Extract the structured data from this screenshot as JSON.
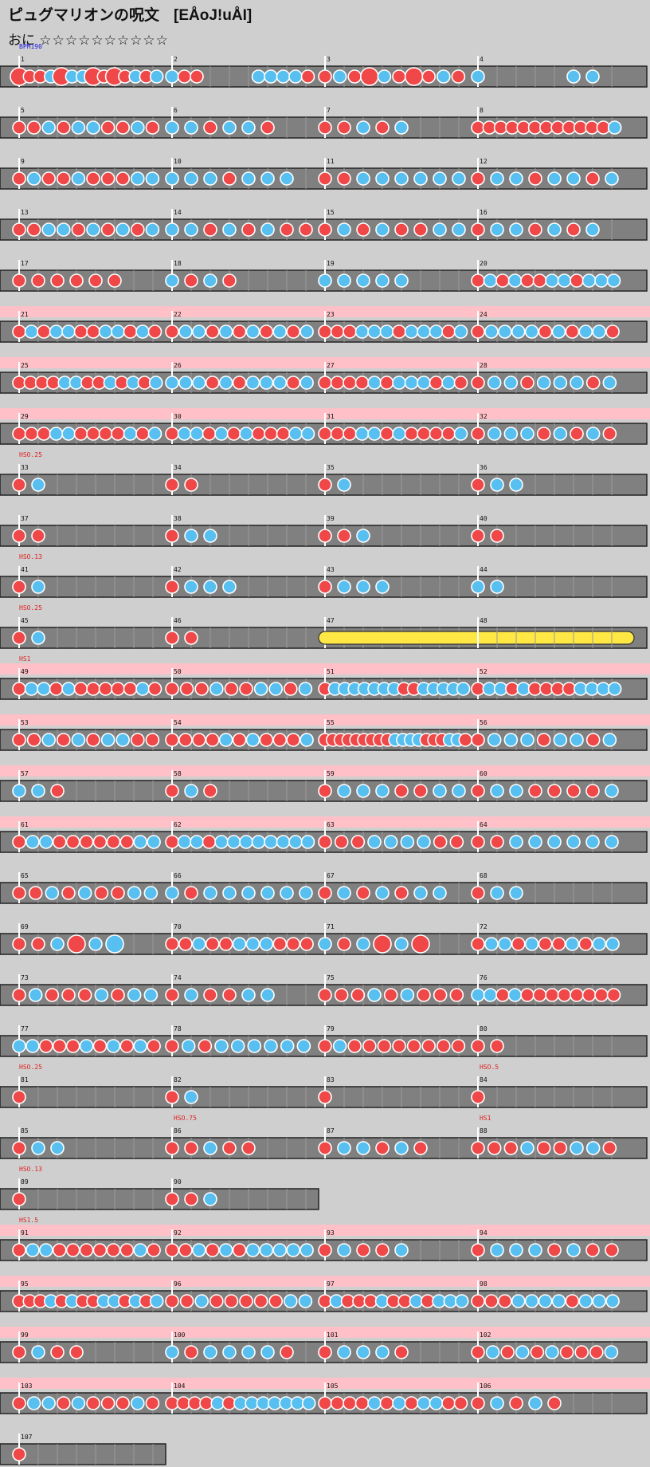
{
  "header": {
    "title": "ピュグマリオンの呪文",
    "subtitle": "[EÅoJ!uÅI]",
    "course": "おに",
    "stars": "☆☆☆☆☆☆☆☆☆☆"
  },
  "colors": {
    "background": "#cfcfcf",
    "lane": "#808080",
    "lane_border": "#222222",
    "gogo": "#ffc0c8",
    "don": "#f04848",
    "ka": "#58c0f0",
    "roll": "#ffe844",
    "event_text": "#e02020",
    "bpm_text": "#2020e0"
  },
  "score": {
    "bpm_label": "BPM190",
    "rows": [
      {
        "gogo": false,
        "hs": "",
        "bars": [
          {
            "n": 1,
            "notes": "DddkDkkDdDdkdk"
          },
          {
            "n": 2,
            "notes": "kdd____kkkkd"
          },
          {
            "n": 3,
            "notes": "dkdDkdDdkd"
          },
          {
            "n": 4,
            "notes": "k____kk"
          }
        ]
      },
      {
        "gogo": false,
        "hs": "",
        "bars": [
          {
            "n": 5,
            "notes": "ddkdkkddkd"
          },
          {
            "n": 6,
            "notes": "kkdkkd"
          },
          {
            "n": 7,
            "notes": "ddkdk"
          },
          {
            "n": 8,
            "notes": "ddddddddddddk"
          }
        ]
      },
      {
        "gogo": false,
        "hs": "",
        "bars": [
          {
            "n": 9,
            "notes": "dkddkdddkk"
          },
          {
            "n": 10,
            "notes": "kkkdkkk"
          },
          {
            "n": 11,
            "notes": "ddkkkkkk"
          },
          {
            "n": 12,
            "notes": "dkkdkkdk"
          }
        ]
      },
      {
        "gogo": false,
        "hs": "",
        "bars": [
          {
            "n": 13,
            "notes": "ddkkdkdkdk"
          },
          {
            "n": 14,
            "notes": "kkdkdkdd"
          },
          {
            "n": 15,
            "notes": "dkdkddkk"
          },
          {
            "n": 16,
            "notes": "dkkdkdk"
          }
        ]
      },
      {
        "gogo": false,
        "hs": "",
        "bars": [
          {
            "n": 17,
            "notes": "dddddd"
          },
          {
            "n": 18,
            "notes": "kdkd"
          },
          {
            "n": 19,
            "notes": "kkkkk"
          },
          {
            "n": 20,
            "notes": "dkdkddkkdkkk"
          }
        ]
      },
      {
        "gogo": true,
        "hs": "",
        "bars": [
          {
            "n": 21,
            "notes": "dkdkkddkkdkd"
          },
          {
            "n": 22,
            "notes": "dkkdkdkdkdk"
          },
          {
            "n": 23,
            "notes": "dddkkkdkkkdk"
          },
          {
            "n": 24,
            "notes": "dkkkkdkdkkd"
          }
        ]
      },
      {
        "gogo": true,
        "hs": "",
        "bars": [
          {
            "n": 25,
            "notes": "ddddkkddkdkdk"
          },
          {
            "n": 26,
            "notes": "kkkdkdkkkdk"
          },
          {
            "n": 27,
            "notes": "ddddkdkkkdkd"
          },
          {
            "n": 28,
            "notes": "dkkdkkkdk"
          }
        ]
      },
      {
        "gogo": true,
        "hs": "",
        "bars": [
          {
            "n": 29,
            "notes": "dddkkddddkdk"
          },
          {
            "n": 30,
            "notes": "dkkdkdkdddkk"
          },
          {
            "n": 31,
            "notes": "dddkkdkddddk"
          },
          {
            "n": 32,
            "notes": "dkkkdkdkd"
          }
        ]
      },
      {
        "gogo": false,
        "hs": "HSO.25",
        "bars": [
          {
            "n": 33,
            "notes": "dk"
          },
          {
            "n": 34,
            "notes": "dd"
          },
          {
            "n": 35,
            "notes": "dk"
          },
          {
            "n": 36,
            "notes": "dkk"
          }
        ]
      },
      {
        "gogo": false,
        "hs": "",
        "bars": [
          {
            "n": 37,
            "notes": "dd"
          },
          {
            "n": 38,
            "notes": "dkk"
          },
          {
            "n": 39,
            "notes": "ddk"
          },
          {
            "n": 40,
            "notes": "dd"
          }
        ]
      },
      {
        "gogo": false,
        "hs": "HSO.13",
        "bars": [
          {
            "n": 41,
            "notes": "dk"
          },
          {
            "n": 42,
            "notes": "dkkk"
          },
          {
            "n": 43,
            "notes": "dkkk"
          },
          {
            "n": 44,
            "notes": "kk"
          }
        ]
      },
      {
        "gogo": false,
        "hs": "HSO.25",
        "bars": [
          {
            "n": 45,
            "notes": "dk"
          },
          {
            "n": 46,
            "notes": "dd"
          },
          {
            "n": 47,
            "notes": "R"
          },
          {
            "n": 48,
            "notes": ""
          }
        ]
      },
      {
        "gogo": true,
        "hs": "HS1",
        "bars": [
          {
            "n": 49,
            "notes": "dkkdkdddddkd"
          },
          {
            "n": 50,
            "notes": "dddkddkkdk"
          },
          {
            "n": 51,
            "notes": "dkkkkkkkddkkkkk"
          },
          {
            "n": 52,
            "notes": "dkkdkddddkkkk"
          }
        ]
      },
      {
        "gogo": true,
        "hs": "",
        "bars": [
          {
            "n": 53,
            "notes": "ddkdkdkkdd"
          },
          {
            "n": 54,
            "notes": "ddddkdkdddk"
          },
          {
            "n": 55,
            "notes": "dddddddddkkkkdddkkd"
          },
          {
            "n": 56,
            "notes": "dkkkdkkdk"
          }
        ]
      },
      {
        "gogo": true,
        "hs": "",
        "bars": [
          {
            "n": 57,
            "notes": "kkd"
          },
          {
            "n": 58,
            "notes": "dkd"
          },
          {
            "n": 59,
            "notes": "dkkkddkk"
          },
          {
            "n": 60,
            "notes": "dkkddddk"
          }
        ]
      },
      {
        "gogo": true,
        "hs": "",
        "bars": [
          {
            "n": 61,
            "notes": "dkkddddddkk"
          },
          {
            "n": 62,
            "notes": "dkkdkkkkkkkk"
          },
          {
            "n": 63,
            "notes": "dddkkkkdd"
          },
          {
            "n": 64,
            "notes": "ddkkkkkk"
          }
        ]
      },
      {
        "gogo": false,
        "hs": "",
        "bars": [
          {
            "n": 65,
            "notes": "ddkdkddkk"
          },
          {
            "n": 66,
            "notes": "kdkkkkkk"
          },
          {
            "n": 67,
            "notes": "dkdkdkk"
          },
          {
            "n": 68,
            "notes": "dkk"
          }
        ]
      },
      {
        "gogo": false,
        "hs": "",
        "bars": [
          {
            "n": 69,
            "notes": "ddkDkK"
          },
          {
            "n": 70,
            "notes": "ddkddkkkddd"
          },
          {
            "n": 71,
            "notes": "kdkDkD"
          },
          {
            "n": 72,
            "notes": "dkkdkddkdkk"
          }
        ]
      },
      {
        "gogo": false,
        "hs": "",
        "bars": [
          {
            "n": 73,
            "notes": "dkdddkdkk"
          },
          {
            "n": 74,
            "notes": "dkddkk"
          },
          {
            "n": 75,
            "notes": "dddkdkddd"
          },
          {
            "n": 76,
            "notes": "kkdkdddddddd"
          }
        ]
      },
      {
        "gogo": false,
        "hs": "",
        "bars": [
          {
            "n": 77,
            "notes": "kkdddkdkdkd"
          },
          {
            "n": 78,
            "notes": "dkdkkkkkk"
          },
          {
            "n": 79,
            "notes": "dkdddddddd"
          },
          {
            "n": 80,
            "notes": "dd"
          }
        ]
      },
      {
        "gogo": false,
        "hs": "HSO.25",
        "bars": [
          {
            "n": 81,
            "notes": "d",
            "hs": ""
          },
          {
            "n": 82,
            "notes": "dk",
            "hs": ""
          },
          {
            "n": 83,
            "notes": "d",
            "hs": ""
          },
          {
            "n": 84,
            "notes": "d",
            "hs": "HSO.5"
          }
        ]
      },
      {
        "gogo": false,
        "hs": "",
        "bars": [
          {
            "n": 85,
            "notes": "dkk",
            "hs": ""
          },
          {
            "n": 86,
            "notes": "ddkdd",
            "hs": "HSO.75"
          },
          {
            "n": 87,
            "notes": "dkkdkd",
            "hs": ""
          },
          {
            "n": 88,
            "notes": "dddkddkkd",
            "hs": "HS1"
          }
        ]
      },
      {
        "gogo": false,
        "hs": "HSO.13",
        "short": 2,
        "bars": [
          {
            "n": 89,
            "notes": "d"
          },
          {
            "n": 90,
            "notes": "ddk"
          }
        ]
      },
      {
        "gogo": true,
        "hs": "HS1.5",
        "bars": [
          {
            "n": 91,
            "notes": "dkkddddddkd"
          },
          {
            "n": 92,
            "notes": "ddkdkdkkkkk"
          },
          {
            "n": 93,
            "notes": "dkddk"
          },
          {
            "n": 94,
            "notes": "dkkkdkdd"
          }
        ]
      },
      {
        "gogo": true,
        "hs": "",
        "bars": [
          {
            "n": 95,
            "notes": "dddkdkddkkdkdk"
          },
          {
            "n": 96,
            "notes": "ddkdddddkk"
          },
          {
            "n": 97,
            "notes": "dkdddkddkdkkk"
          },
          {
            "n": 98,
            "notes": "dddkkkkdkkk"
          }
        ]
      },
      {
        "gogo": true,
        "hs": "",
        "bars": [
          {
            "n": 99,
            "notes": "dkdd"
          },
          {
            "n": 100,
            "notes": "kdkkkkd"
          },
          {
            "n": 101,
            "notes": "dkkkd"
          },
          {
            "n": 102,
            "notes": "dkdkdkdddk"
          }
        ]
      },
      {
        "gogo": true,
        "hs": "",
        "bars": [
          {
            "n": 103,
            "notes": "dkkdkdddkd"
          },
          {
            "n": 104,
            "notes": "ddddkdkkkkkkk"
          },
          {
            "n": 105,
            "notes": "ddddkdkdkkdd"
          },
          {
            "n": 106,
            "notes": "dkdkd"
          }
        ]
      },
      {
        "gogo": false,
        "hs": "",
        "short": 1,
        "bars": [
          {
            "n": 107,
            "notes": "d"
          }
        ]
      }
    ]
  }
}
